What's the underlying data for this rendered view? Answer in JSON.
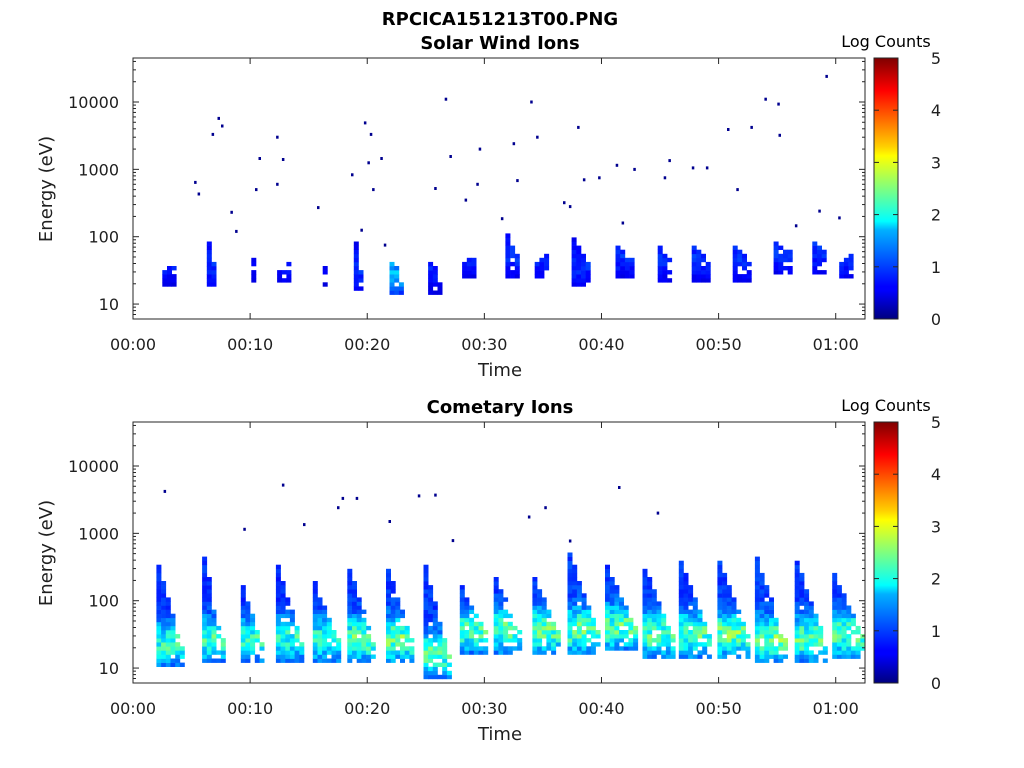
{
  "figure_title": "RPCICA151213T00.PNG",
  "chart_data": [
    {
      "type": "heatmap",
      "title": "Solar Wind Ions",
      "xlabel": "Time",
      "ylabel": "Energy (eV)",
      "yscale": "log",
      "x_unit": "minutes",
      "xlim": [
        0,
        62.5
      ],
      "ylim": [
        6,
        45000
      ],
      "x_ticks": [
        0,
        10,
        20,
        30,
        40,
        50,
        60
      ],
      "x_tick_labels": [
        "00:00",
        "00:10",
        "00:20",
        "00:30",
        "00:40",
        "00:50",
        "01:00"
      ],
      "y_ticks": [
        10,
        100,
        1000,
        10000
      ],
      "y_tick_labels": [
        "10",
        "100",
        "1000",
        "10000"
      ],
      "grid": false,
      "colorbar": {
        "label": "Log Counts",
        "min": 0,
        "max": 5,
        "ticks": [
          "0",
          "1",
          "2",
          "3",
          "4",
          "5"
        ],
        "colormap": "jet"
      },
      "bursts": [
        {
          "t": 3.0,
          "e_low": 18,
          "e_high": 32,
          "peak": 0.5,
          "width": 1.0
        },
        {
          "t": 6.7,
          "e_low": 18,
          "e_high": 85,
          "peak": 0.6,
          "width": 0.8
        },
        {
          "t": 10.3,
          "e_low": 22,
          "e_high": 60,
          "peak": 0.4,
          "width": 0.4
        },
        {
          "t": 12.8,
          "e_low": 20,
          "e_high": 32,
          "peak": 0.5,
          "width": 1.0
        },
        {
          "t": 16.5,
          "e_low": 18,
          "e_high": 30,
          "peak": 0.4,
          "width": 0.6
        },
        {
          "t": 19.3,
          "e_low": 15,
          "e_high": 90,
          "peak": 0.6,
          "width": 0.9
        },
        {
          "t": 22.5,
          "e_low": 13,
          "e_high": 42,
          "peak": 1.2,
          "width": 1.2
        },
        {
          "t": 25.8,
          "e_low": 14,
          "e_high": 42,
          "peak": 0.5,
          "width": 1.2
        },
        {
          "t": 28.8,
          "e_low": 24,
          "e_high": 42,
          "peak": 0.6,
          "width": 1.4
        },
        {
          "t": 32.5,
          "e_low": 24,
          "e_high": 110,
          "peak": 0.6,
          "width": 1.4
        },
        {
          "t": 35.0,
          "e_low": 24,
          "e_high": 42,
          "peak": 0.6,
          "width": 1.4
        },
        {
          "t": 38.2,
          "e_low": 18,
          "e_high": 100,
          "peak": 0.6,
          "width": 1.5
        },
        {
          "t": 42.0,
          "e_low": 24,
          "e_high": 70,
          "peak": 0.6,
          "width": 1.6
        },
        {
          "t": 45.5,
          "e_low": 22,
          "e_high": 70,
          "peak": 0.6,
          "width": 1.4
        },
        {
          "t": 48.5,
          "e_low": 22,
          "e_high": 75,
          "peak": 0.6,
          "width": 1.6
        },
        {
          "t": 52.0,
          "e_low": 22,
          "e_high": 75,
          "peak": 0.6,
          "width": 1.6
        },
        {
          "t": 55.5,
          "e_low": 28,
          "e_high": 80,
          "peak": 0.6,
          "width": 1.6
        },
        {
          "t": 58.5,
          "e_low": 28,
          "e_high": 80,
          "peak": 0.6,
          "width": 1.0
        },
        {
          "t": 61.0,
          "e_low": 24,
          "e_high": 42,
          "peak": 0.6,
          "width": 1.4
        }
      ],
      "scatter": [
        [
          5.3,
          640
        ],
        [
          5.6,
          430
        ],
        [
          6.8,
          3300
        ],
        [
          7.3,
          5700
        ],
        [
          7.6,
          4400
        ],
        [
          8.4,
          230
        ],
        [
          8.8,
          120
        ],
        [
          10.5,
          500
        ],
        [
          10.8,
          1450
        ],
        [
          12.3,
          3000
        ],
        [
          12.3,
          600
        ],
        [
          12.8,
          1400
        ],
        [
          15.8,
          270
        ],
        [
          18.7,
          830
        ],
        [
          19.5,
          125
        ],
        [
          19.8,
          4900
        ],
        [
          20.1,
          1250
        ],
        [
          20.3,
          3300
        ],
        [
          20.5,
          500
        ],
        [
          21.2,
          1450
        ],
        [
          21.5,
          75
        ],
        [
          25.8,
          520
        ],
        [
          26.7,
          11000
        ],
        [
          27.1,
          1550
        ],
        [
          28.4,
          350
        ],
        [
          29.4,
          600
        ],
        [
          29.6,
          2000
        ],
        [
          31.5,
          185
        ],
        [
          32.5,
          2400
        ],
        [
          32.8,
          680
        ],
        [
          34.0,
          10000
        ],
        [
          34.5,
          3000
        ],
        [
          36.8,
          320
        ],
        [
          37.3,
          280
        ],
        [
          38.0,
          4200
        ],
        [
          38.5,
          700
        ],
        [
          39.8,
          750
        ],
        [
          41.3,
          1150
        ],
        [
          41.8,
          160
        ],
        [
          42.8,
          1000
        ],
        [
          45.8,
          1350
        ],
        [
          45.4,
          750
        ],
        [
          47.8,
          1050
        ],
        [
          49.0,
          1050
        ],
        [
          50.8,
          3900
        ],
        [
          51.6,
          500
        ],
        [
          52.8,
          4200
        ],
        [
          54.0,
          11000
        ],
        [
          55.1,
          9300
        ],
        [
          55.2,
          3200
        ],
        [
          56.6,
          145
        ],
        [
          58.6,
          240
        ],
        [
          59.2,
          24000
        ],
        [
          60.3,
          190
        ]
      ]
    },
    {
      "type": "heatmap",
      "title": "Cometary Ions",
      "xlabel": "Time",
      "ylabel": "Energy (eV)",
      "yscale": "log",
      "x_unit": "minutes",
      "xlim": [
        0,
        62.5
      ],
      "ylim": [
        6,
        45000
      ],
      "x_ticks": [
        0,
        10,
        20,
        30,
        40,
        50,
        60
      ],
      "x_tick_labels": [
        "00:00",
        "00:10",
        "00:20",
        "00:30",
        "00:40",
        "00:50",
        "01:00"
      ],
      "y_ticks": [
        10,
        100,
        1000,
        10000
      ],
      "y_tick_labels": [
        "10",
        "100",
        "1000",
        "10000"
      ],
      "grid": false,
      "colorbar": {
        "label": "Log Counts",
        "min": 0,
        "max": 5,
        "ticks": [
          "0",
          "1",
          "2",
          "3",
          "4",
          "5"
        ],
        "colormap": "jet"
      },
      "bursts": [
        {
          "t": 3.2,
          "e_low": 10,
          "e_high": 330,
          "peak": 1.8,
          "width": 2.4
        },
        {
          "t": 6.9,
          "e_low": 12,
          "e_high": 430,
          "peak": 1.9,
          "width": 2.0
        },
        {
          "t": 10.2,
          "e_low": 12,
          "e_high": 160,
          "peak": 1.8,
          "width": 2.0
        },
        {
          "t": 13.4,
          "e_low": 12,
          "e_high": 330,
          "peak": 1.8,
          "width": 2.4
        },
        {
          "t": 16.5,
          "e_low": 12,
          "e_high": 200,
          "peak": 1.8,
          "width": 2.3
        },
        {
          "t": 19.5,
          "e_low": 12,
          "e_high": 300,
          "peak": 2.0,
          "width": 2.4
        },
        {
          "t": 22.8,
          "e_low": 12,
          "e_high": 300,
          "peak": 2.1,
          "width": 2.4
        },
        {
          "t": 25.9,
          "e_low": 7,
          "e_high": 320,
          "peak": 2.0,
          "width": 2.2
        },
        {
          "t": 29.0,
          "e_low": 16,
          "e_high": 160,
          "peak": 1.9,
          "width": 2.2
        },
        {
          "t": 32.0,
          "e_low": 16,
          "e_high": 230,
          "peak": 2.0,
          "width": 2.4
        },
        {
          "t": 35.3,
          "e_low": 16,
          "e_high": 220,
          "peak": 2.0,
          "width": 2.4
        },
        {
          "t": 38.5,
          "e_low": 16,
          "e_high": 500,
          "peak": 2.1,
          "width": 2.8
        },
        {
          "t": 41.7,
          "e_low": 18,
          "e_high": 320,
          "peak": 2.0,
          "width": 2.8
        },
        {
          "t": 44.8,
          "e_low": 14,
          "e_high": 310,
          "peak": 2.0,
          "width": 2.6
        },
        {
          "t": 48.0,
          "e_low": 14,
          "e_high": 380,
          "peak": 2.0,
          "width": 2.8
        },
        {
          "t": 51.3,
          "e_low": 14,
          "e_high": 400,
          "peak": 2.1,
          "width": 2.8
        },
        {
          "t": 54.5,
          "e_low": 12,
          "e_high": 440,
          "peak": 2.1,
          "width": 2.8
        },
        {
          "t": 57.8,
          "e_low": 12,
          "e_high": 380,
          "peak": 2.0,
          "width": 2.6
        },
        {
          "t": 61.0,
          "e_low": 14,
          "e_high": 260,
          "peak": 2.0,
          "width": 2.6
        }
      ],
      "scatter": [
        [
          2.7,
          4200
        ],
        [
          9.5,
          1150
        ],
        [
          12.8,
          5200
        ],
        [
          14.6,
          1350
        ],
        [
          17.5,
          2400
        ],
        [
          17.9,
          3300
        ],
        [
          19.1,
          3300
        ],
        [
          21.9,
          1500
        ],
        [
          24.4,
          3600
        ],
        [
          25.8,
          3700
        ],
        [
          27.3,
          780
        ],
        [
          33.8,
          1750
        ],
        [
          35.2,
          2400
        ],
        [
          37.3,
          770
        ],
        [
          41.5,
          4800
        ],
        [
          44.8,
          2000
        ]
      ]
    }
  ]
}
